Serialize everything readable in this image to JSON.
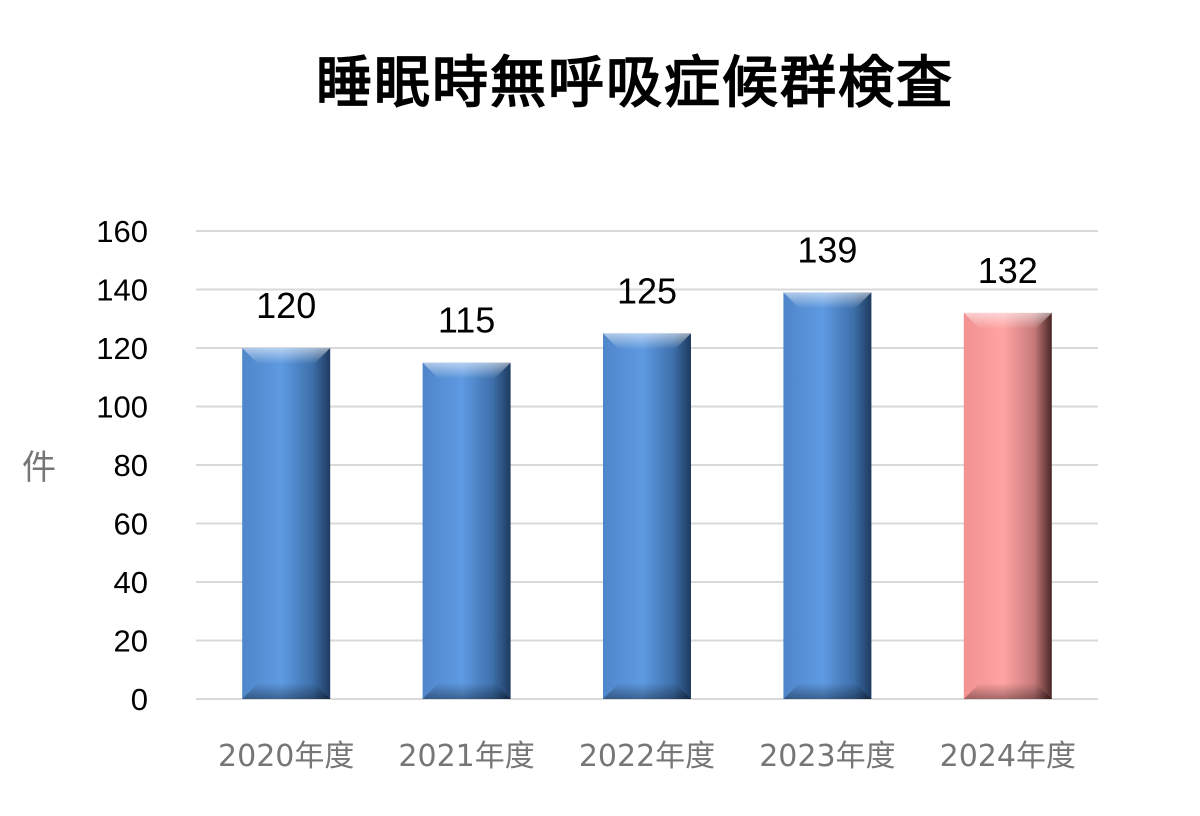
{
  "chart_data": {
    "type": "bar",
    "title": "睡眠時無呼吸症候群検査",
    "ylabel": "件",
    "xlabel": "",
    "categories": [
      "2020年度",
      "2021年度",
      "2022年度",
      "2023年度",
      "2024年度"
    ],
    "values": [
      120,
      115,
      125,
      139,
      132
    ],
    "ylim": [
      0,
      160
    ],
    "yticks": [
      0,
      20,
      40,
      60,
      80,
      100,
      120,
      140,
      160
    ],
    "grid": true,
    "legend": "none",
    "data_labels": true,
    "colors": {
      "bar": "#5b96dc",
      "highlight_bar": "#ff9f9f",
      "grid": "#d9d9d9"
    },
    "highlight_index": 4
  }
}
